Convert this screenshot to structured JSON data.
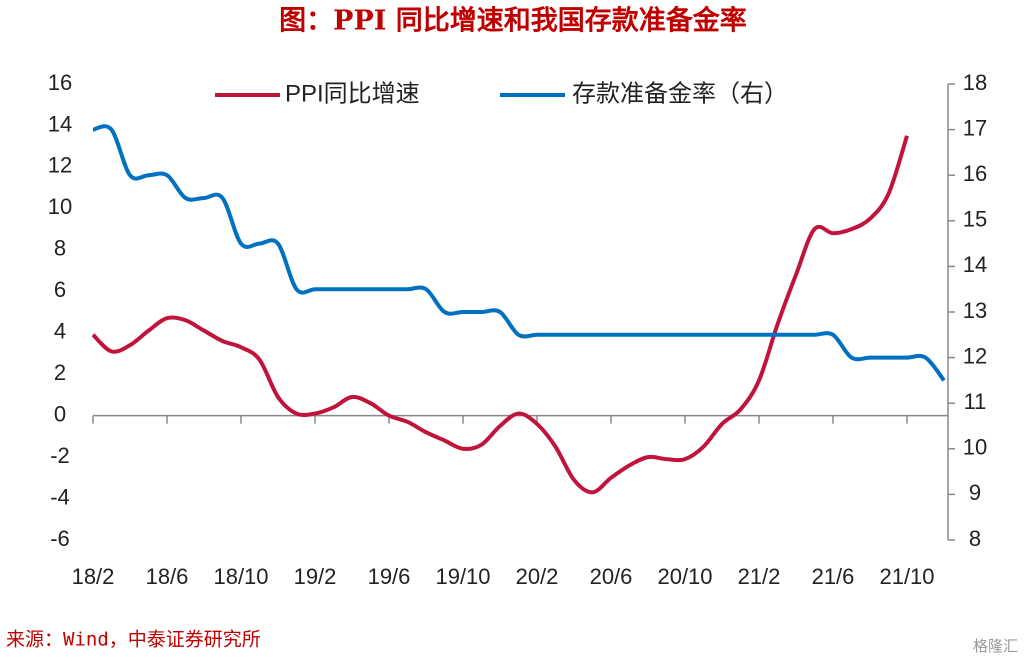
{
  "chart_data": {
    "type": "line",
    "title": "图：PPI 同比增速和我国存款准备金率",
    "source": "来源：Wind，中泰证券研究所",
    "watermark": "格隆汇",
    "categories": [
      "18/2",
      null,
      null,
      null,
      "18/6",
      null,
      null,
      null,
      "18/10",
      null,
      null,
      null,
      "19/2",
      null,
      null,
      null,
      "19/6",
      null,
      null,
      null,
      "19/10",
      null,
      null,
      null,
      "20/2",
      null,
      null,
      null,
      "20/6",
      null,
      null,
      null,
      "20/10",
      null,
      null,
      null,
      "21/2",
      null,
      null,
      null,
      "21/6",
      null,
      null,
      null,
      "21/10",
      null,
      null
    ],
    "series": [
      {
        "name": "PPI同比增速",
        "color": "#c0143c",
        "values": [
          3.9,
          3.1,
          3.4,
          4.1,
          4.7,
          4.6,
          4.1,
          3.6,
          3.3,
          2.7,
          0.9,
          0.1,
          0.1,
          0.4,
          0.9,
          0.6,
          0.0,
          -0.3,
          -0.8,
          -1.2,
          -1.6,
          -1.4,
          -0.5,
          0.1,
          -0.4,
          -1.5,
          -3.1,
          -3.7,
          -3.0,
          -2.4,
          -2.0,
          -2.1,
          -2.1,
          -1.5,
          -0.4,
          0.3,
          1.7,
          4.4,
          6.8,
          9.0,
          8.8,
          9.0,
          9.5,
          10.7,
          13.5,
          null,
          null
        ]
      },
      {
        "name": "存款准备金率（右）",
        "color": "#0070c0",
        "axis": "y2",
        "values": [
          17,
          17,
          16,
          16,
          16,
          15.5,
          15.5,
          15.5,
          14.5,
          14.5,
          14.5,
          13.5,
          13.5,
          13.5,
          13.5,
          13.5,
          13.5,
          13.5,
          13.5,
          13,
          13,
          13,
          13,
          12.5,
          12.5,
          12.5,
          12.5,
          12.5,
          12.5,
          12.5,
          12.5,
          12.5,
          12.5,
          12.5,
          12.5,
          12.5,
          12.5,
          12.5,
          12.5,
          12.5,
          12.5,
          12,
          12,
          12,
          12,
          12,
          11.5
        ]
      }
    ],
    "ylim": [
      -6,
      16
    ],
    "yticks": [
      -6,
      -4,
      -2,
      0,
      2,
      4,
      6,
      8,
      10,
      12,
      14,
      16
    ],
    "y2lim": [
      8,
      18
    ],
    "y2ticks": [
      8,
      9,
      10,
      11,
      12,
      13,
      14,
      15,
      16,
      17,
      18
    ]
  }
}
